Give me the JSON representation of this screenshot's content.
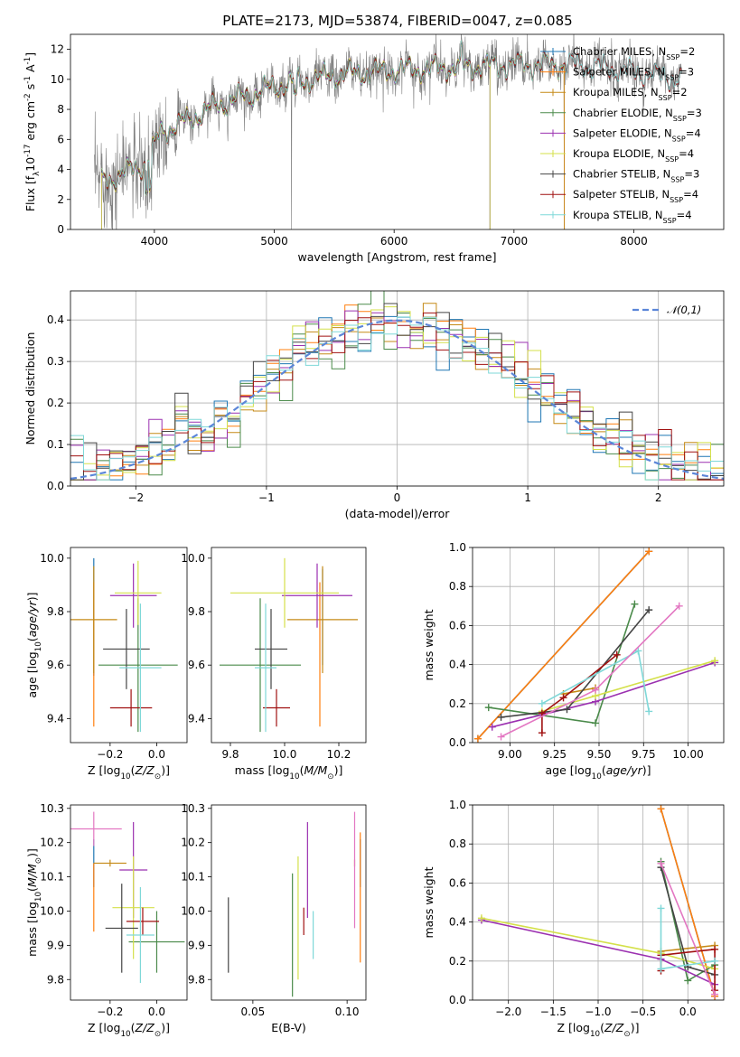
{
  "figure_title": "PLATE=2173, MJD=53874, FIBERID=0047, z=0.085",
  "models": [
    {
      "name": "Chabrier MILES, N$_{SSP}$=2",
      "color": "#1f77b4"
    },
    {
      "name": "Salpeter MILES, N$_{SSP}$=3",
      "color": "#ff7f0e"
    },
    {
      "name": "Kroupa MILES, N$_{SSP}$=2",
      "color": "#c58a17"
    },
    {
      "name": "Chabrier ELODIE, N$_{SSP}$=3",
      "color": "#4a8a4a"
    },
    {
      "name": "Salpeter ELODIE, N$_{SSP}$=4",
      "color": "#9b30b0"
    },
    {
      "name": "Kroupa ELODIE, N$_{SSP}$=4",
      "color": "#d4e04a"
    },
    {
      "name": "Chabrier STELIB, N$_{SSP}$=3",
      "color": "#444444"
    },
    {
      "name": "Salpeter STELIB, N$_{SSP}$=4",
      "color": "#a01010"
    },
    {
      "name": "Kroupa STELIB, N$_{SSP}$=4",
      "color": "#7fd8d8"
    }
  ],
  "chart_data": [
    {
      "type": "line",
      "id": "spectrum",
      "xlabel": "wavelength [Angstrom, rest frame]",
      "ylabel": "Flux [f$_\\lambda$10$^{-17}$ erg cm$^{-2}$ s$^{-1}$ A$^{-1}$]",
      "xlim": [
        3300,
        8750
      ],
      "ylim": [
        0,
        13
      ],
      "xticks": [
        4000,
        5000,
        6000,
        7000,
        8000
      ],
      "yticks": [
        0,
        2,
        4,
        6,
        8,
        10,
        12
      ],
      "data_color": "#808080",
      "continuum": [
        [
          3500,
          3.0
        ],
        [
          3700,
          3.6
        ],
        [
          3950,
          4.5
        ],
        [
          4050,
          6.5
        ],
        [
          4200,
          7.0
        ],
        [
          4500,
          8.2
        ],
        [
          5000,
          9.5
        ],
        [
          5500,
          10.3
        ],
        [
          6000,
          10.6
        ],
        [
          6500,
          10.8
        ],
        [
          7000,
          11.0
        ],
        [
          7500,
          11.0
        ],
        [
          8000,
          10.5
        ],
        [
          8400,
          10.0
        ]
      ],
      "data_range": [
        3500,
        8400
      ],
      "model_ranges": [
        [
          3560,
          7420
        ],
        [
          3560,
          7420
        ],
        [
          3560,
          7420
        ],
        [
          3560,
          6800
        ],
        [
          3560,
          6800
        ],
        [
          3560,
          6800
        ],
        [
          3560,
          8400
        ],
        [
          3560,
          8400
        ],
        [
          3560,
          8400
        ]
      ],
      "grid": false,
      "legend_position": "right"
    },
    {
      "type": "line",
      "id": "residuals",
      "xlabel": "(data-model)/error",
      "ylabel": "Normed distribution",
      "xlim": [
        -2.5,
        2.5
      ],
      "ylim": [
        0,
        0.47
      ],
      "xticks": [
        -2,
        -1,
        0,
        1,
        2
      ],
      "yticks": [
        0.0,
        0.1,
        0.2,
        0.3,
        0.4
      ],
      "bin_width": 0.1,
      "bin_start": -2.5,
      "gaussian_label": "$\\mathcal{N}(0,1)$",
      "gaussian_color": "#5b86d8",
      "grid": true,
      "legend_position": "top-right"
    },
    {
      "type": "scatter",
      "id": "age-vs-Z",
      "xlabel": "Z [log$_{10}$($Z/Z_\\odot$)]",
      "ylabel": "age  [log$_{10}$($age/yr$)]",
      "xlim": [
        -0.37,
        0.13
      ],
      "ylim": [
        9.31,
        10.04
      ],
      "xticks": [
        -0.2,
        0.0
      ],
      "yticks": [
        9.4,
        9.6,
        9.8,
        10.0
      ],
      "points": [
        {
          "model": 0,
          "x": -0.27,
          "xerr": 0.0,
          "y": 9.78,
          "yerr": 0.22
        },
        {
          "model": 1,
          "x": -0.27,
          "xerr": 0.0,
          "y": 9.64,
          "yerr": 0.27
        },
        {
          "model": 2,
          "x": -0.27,
          "xerr": 0.1,
          "y": 9.77,
          "yerr": 0.2
        },
        {
          "model": 3,
          "x": -0.08,
          "xerr": 0.17,
          "y": 9.6,
          "yerr": 0.25
        },
        {
          "model": 4,
          "x": -0.1,
          "xerr": 0.1,
          "y": 9.86,
          "yerr": 0.12
        },
        {
          "model": 5,
          "x": -0.08,
          "xerr": 0.1,
          "y": 9.87,
          "yerr": 0.12
        },
        {
          "model": 6,
          "x": -0.13,
          "xerr": 0.1,
          "y": 9.66,
          "yerr": 0.15
        },
        {
          "model": 7,
          "x": -0.11,
          "xerr": 0.09,
          "y": 9.44,
          "yerr": 0.07
        },
        {
          "model": 8,
          "x": -0.07,
          "xerr": 0.09,
          "y": 9.59,
          "yerr": 0.24
        }
      ]
    },
    {
      "type": "scatter",
      "id": "age-vs-mass",
      "xlabel": "mass [log$_{10}$($M/M_\\odot$)]",
      "ylabel": "",
      "xlim": [
        9.73,
        10.3
      ],
      "ylim": [
        9.31,
        10.04
      ],
      "xticks": [
        9.8,
        10.0,
        10.2
      ],
      "yticks": [
        9.4,
        9.6,
        9.8,
        10.0
      ],
      "points": [
        {
          "model": 0,
          "x": 10.14,
          "xerr": 0.0,
          "y": 9.78,
          "yerr": 0.18
        },
        {
          "model": 1,
          "x": 10.13,
          "xerr": 0.0,
          "y": 9.64,
          "yerr": 0.27
        },
        {
          "model": 2,
          "x": 10.14,
          "xerr": 0.13,
          "y": 9.77,
          "yerr": 0.2
        },
        {
          "model": 3,
          "x": 9.91,
          "xerr": 0.15,
          "y": 9.6,
          "yerr": 0.25
        },
        {
          "model": 4,
          "x": 10.12,
          "xerr": 0.13,
          "y": 9.86,
          "yerr": 0.12
        },
        {
          "model": 5,
          "x": 10.0,
          "xerr": 0.2,
          "y": 9.87,
          "yerr": 0.13
        },
        {
          "model": 6,
          "x": 9.95,
          "xerr": 0.06,
          "y": 9.66,
          "yerr": 0.15
        },
        {
          "model": 7,
          "x": 9.97,
          "xerr": 0.05,
          "y": 9.44,
          "yerr": 0.07
        },
        {
          "model": 8,
          "x": 9.93,
          "xerr": 0.04,
          "y": 9.59,
          "yerr": 0.24
        }
      ]
    },
    {
      "type": "line",
      "id": "weight-vs-age",
      "xlabel": "age  [log$_{10}$($age/yr$)]",
      "ylabel": "mass weight",
      "xlim": [
        8.79,
        10.2
      ],
      "ylim": [
        0,
        1
      ],
      "xticks": [
        9.0,
        9.25,
        9.5,
        9.75,
        10.0
      ],
      "yticks": [
        0.0,
        0.2,
        0.4,
        0.6,
        0.8,
        1.0
      ],
      "grid": true,
      "series": [
        {
          "model": 0,
          "x": [
            8.82,
            9.78
          ],
          "y": [
            0.02,
            0.98
          ]
        },
        {
          "model": 1,
          "x": [
            8.82,
            9.78
          ],
          "y": [
            0.02,
            0.98
          ]
        },
        {
          "model": 2,
          "x": [
            9.3,
            9.48
          ],
          "y": [
            0.25,
            0.28
          ]
        },
        {
          "model": 3,
          "x": [
            8.88,
            9.48,
            9.7
          ],
          "y": [
            0.18,
            0.1,
            0.71
          ]
        },
        {
          "model": 4,
          "x": [
            8.9,
            9.48,
            10.15
          ],
          "y": [
            0.08,
            0.21,
            0.41
          ]
        },
        {
          "model": 5,
          "x": [
            9.18,
            9.48,
            10.15
          ],
          "y": [
            0.16,
            0.24,
            0.42
          ]
        },
        {
          "model": 6,
          "x": [
            8.95,
            9.32,
            9.78
          ],
          "y": [
            0.13,
            0.17,
            0.68
          ]
        },
        {
          "model": 7,
          "x": [
            9.18,
            9.18,
            9.3,
            9.6
          ],
          "y": [
            0.05,
            0.15,
            0.23,
            0.45
          ]
        },
        {
          "model": 8,
          "x": [
            9.18,
            9.72,
            9.78
          ],
          "y": [
            0.2,
            0.47,
            0.16
          ]
        },
        {
          "model": -1,
          "color": "#e377c2",
          "x": [
            8.95,
            9.48,
            9.95
          ],
          "y": [
            0.03,
            0.27,
            0.7
          ]
        }
      ]
    },
    {
      "type": "scatter",
      "id": "mass-vs-Z",
      "xlabel": "Z [log$_{10}$($Z/Z_\\odot$)]",
      "ylabel": "mass [log$_{10}$($M/M_\\odot$)]",
      "xlim": [
        -0.37,
        0.13
      ],
      "ylim": [
        9.74,
        10.31
      ],
      "xticks": [
        -0.2,
        0.0
      ],
      "yticks": [
        9.8,
        9.9,
        10.0,
        10.1,
        10.2,
        10.3
      ],
      "points": [
        {
          "model": 0,
          "x": -0.27,
          "xerr": 0.0,
          "y": 10.14,
          "yerr": 0.07
        },
        {
          "model": 1,
          "x": -0.27,
          "xerr": 0.0,
          "y": 10.04,
          "yerr": 0.1
        },
        {
          "model": 2,
          "x": -0.2,
          "xerr": 0.07,
          "y": 10.14,
          "yerr": 0.01
        },
        {
          "model": 3,
          "x": 0.0,
          "xerr": 0.12,
          "y": 9.91,
          "yerr": 0.09
        },
        {
          "model": 4,
          "x": -0.1,
          "xerr": 0.06,
          "y": 10.12,
          "yerr": 0.14
        },
        {
          "model": 5,
          "x": -0.1,
          "xerr": 0.09,
          "y": 10.01,
          "yerr": 0.15
        },
        {
          "model": 6,
          "x": -0.15,
          "xerr": 0.07,
          "y": 9.95,
          "yerr": 0.13
        },
        {
          "model": 7,
          "x": -0.06,
          "xerr": 0.07,
          "y": 9.97,
          "yerr": 0.04
        },
        {
          "model": 8,
          "x": -0.07,
          "xerr": 0.06,
          "y": 9.93,
          "yerr": 0.14
        },
        {
          "model": -1,
          "color": "#e377c2",
          "x": -0.27,
          "xerr": 0.12,
          "y": 10.24,
          "yerr": 0.05
        }
      ]
    },
    {
      "type": "scatter",
      "id": "mass-vs-EBV",
      "xlabel": "E(B-V)",
      "ylabel": "",
      "xlim": [
        0.028,
        0.11
      ],
      "ylim": [
        9.74,
        10.31
      ],
      "xticks": [
        0.05,
        0.1
      ],
      "yticks": [
        9.8,
        9.9,
        10.0,
        10.1,
        10.2,
        10.3
      ],
      "points": [
        {
          "model": 0,
          "x": 0.107,
          "xerr": 0.0,
          "y": 10.14,
          "yerr": 0.07
        },
        {
          "model": 1,
          "x": 0.107,
          "xerr": 0.0,
          "y": 10.04,
          "yerr": 0.19
        },
        {
          "model": 2,
          "x": 0.104,
          "xerr": 0.0,
          "y": 10.14,
          "yerr": 0.01
        },
        {
          "model": 3,
          "x": 0.071,
          "xerr": 0.0,
          "y": 9.93,
          "yerr": 0.18
        },
        {
          "model": 4,
          "x": 0.079,
          "xerr": 0.0,
          "y": 10.12,
          "yerr": 0.14
        },
        {
          "model": 5,
          "x": 0.074,
          "xerr": 0.0,
          "y": 9.98,
          "yerr": 0.18
        },
        {
          "model": 6,
          "x": 0.037,
          "xerr": 0.0,
          "y": 9.93,
          "yerr": 0.11
        },
        {
          "model": 7,
          "x": 0.077,
          "xerr": 0.0,
          "y": 9.97,
          "yerr": 0.04
        },
        {
          "model": 8,
          "x": 0.082,
          "xerr": 0.0,
          "y": 9.93,
          "yerr": 0.07
        },
        {
          "model": -1,
          "color": "#e377c2",
          "x": 0.104,
          "xerr": 0.0,
          "y": 10.12,
          "yerr": 0.17
        }
      ]
    },
    {
      "type": "line",
      "id": "weight-vs-Z",
      "xlabel": "Z [log$_{10}$($Z/Z_\\odot$)]",
      "ylabel": "mass weight",
      "xlim": [
        -2.4,
        0.4
      ],
      "ylim": [
        0,
        1
      ],
      "xticks": [
        -2.0,
        -1.5,
        -1.0,
        -0.5,
        0.0
      ],
      "yticks": [
        0.0,
        0.2,
        0.4,
        0.6,
        0.8,
        1.0
      ],
      "grid": true,
      "series": [
        {
          "model": 0,
          "x": [
            -0.3,
            0.3
          ],
          "y": [
            0.98,
            0.02
          ]
        },
        {
          "model": 1,
          "x": [
            -0.3,
            0.3
          ],
          "y": [
            0.98,
            0.02
          ]
        },
        {
          "model": 2,
          "x": [
            -0.3,
            0.3
          ],
          "y": [
            0.25,
            0.28
          ]
        },
        {
          "model": 3,
          "x": [
            -0.3,
            0.0,
            0.3
          ],
          "y": [
            0.71,
            0.1,
            0.18
          ]
        },
        {
          "model": 4,
          "x": [
            -2.3,
            -0.3,
            0.3
          ],
          "y": [
            0.41,
            0.21,
            0.08
          ]
        },
        {
          "model": 5,
          "x": [
            -2.3,
            -0.3,
            0.3
          ],
          "y": [
            0.42,
            0.24,
            0.16
          ]
        },
        {
          "model": 6,
          "x": [
            -0.3,
            0.0,
            0.3
          ],
          "y": [
            0.68,
            0.17,
            0.13
          ]
        },
        {
          "model": 7,
          "x": [
            -0.3,
            -0.3,
            0.3,
            0.3
          ],
          "y": [
            0.15,
            0.23,
            0.26,
            0.05
          ]
        },
        {
          "model": 8,
          "x": [
            -0.3,
            -0.3,
            0.3
          ],
          "y": [
            0.47,
            0.16,
            0.2
          ]
        },
        {
          "model": -1,
          "color": "#e377c2",
          "x": [
            -0.3,
            0.3
          ],
          "y": [
            0.7,
            0.03
          ]
        }
      ]
    }
  ]
}
